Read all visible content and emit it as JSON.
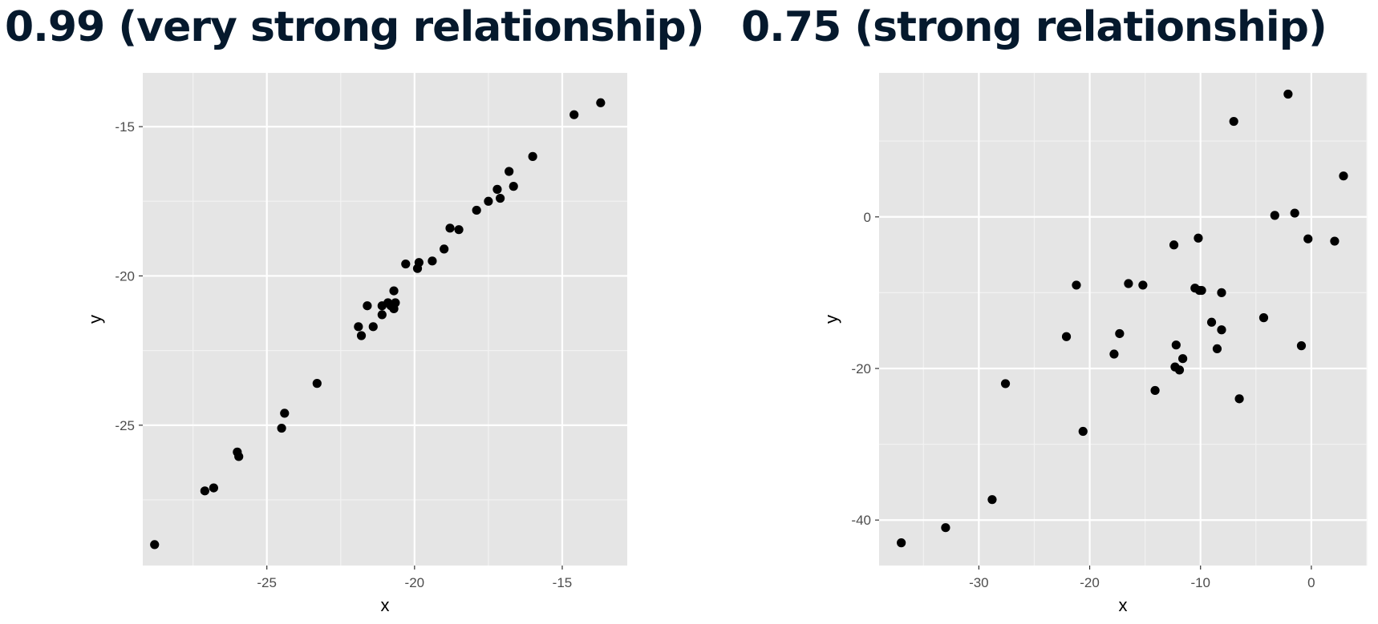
{
  "chart_data": [
    {
      "type": "scatter",
      "title": "0.99 (very strong relationship)",
      "xlabel": "x",
      "ylabel": "y",
      "xlim": [
        -29.2,
        -12.8
      ],
      "ylim": [
        -29.7,
        -13.2
      ],
      "xticks": [
        -25,
        -20,
        -15
      ],
      "yticks": [
        -25,
        -20,
        -15
      ],
      "grid": true,
      "point_color": "#000000",
      "background": "#e5e5e5",
      "x": [
        -28.8,
        -27.1,
        -26.8,
        -26.0,
        -25.95,
        -24.5,
        -24.4,
        -23.3,
        -21.9,
        -21.8,
        -21.6,
        -21.4,
        -21.1,
        -21.1,
        -20.9,
        -20.8,
        -20.7,
        -20.7,
        -20.65,
        -20.3,
        -19.9,
        -19.85,
        -19.4,
        -19.0,
        -18.8,
        -18.5,
        -17.9,
        -17.5,
        -17.2,
        -17.1,
        -16.8,
        -16.65,
        -16.0,
        -14.6,
        -13.7
      ],
      "y": [
        -29.0,
        -27.2,
        -27.1,
        -25.9,
        -26.05,
        -25.1,
        -24.6,
        -23.6,
        -21.7,
        -22.0,
        -21.0,
        -21.7,
        -21.3,
        -21.0,
        -20.9,
        -21.0,
        -21.1,
        -20.5,
        -20.9,
        -19.6,
        -19.75,
        -19.55,
        -19.5,
        -19.1,
        -18.4,
        -18.45,
        -17.8,
        -17.5,
        -17.1,
        -17.4,
        -16.5,
        -17.0,
        -16.0,
        -14.6,
        -14.2
      ]
    },
    {
      "type": "scatter",
      "title": "0.75 (strong relationship)",
      "xlabel": "x",
      "ylabel": "y",
      "xlim": [
        -39.0,
        5.0
      ],
      "ylim": [
        -46.0,
        19.0
      ],
      "xticks": [
        -30,
        -20,
        -10,
        0
      ],
      "yticks": [
        -40,
        -20,
        0
      ],
      "grid": true,
      "point_color": "#000000",
      "background": "#e5e5e5",
      "x": [
        -37.0,
        -33.0,
        -28.8,
        -27.6,
        -22.1,
        -21.2,
        -20.6,
        -17.8,
        -17.3,
        -16.5,
        -15.2,
        -14.1,
        -12.4,
        -12.3,
        -12.2,
        -11.9,
        -11.6,
        -10.5,
        -10.2,
        -10.1,
        -9.9,
        -9.0,
        -8.5,
        -8.1,
        -8.1,
        -7.0,
        -6.5,
        -4.3,
        -3.3,
        -2.1,
        -1.5,
        -0.9,
        -0.3,
        2.1,
        2.9
      ],
      "y": [
        -43.0,
        -41.0,
        -37.3,
        -22.0,
        -15.8,
        -9.0,
        -28.3,
        -18.1,
        -15.4,
        -8.8,
        -9.0,
        -22.9,
        -3.7,
        -19.8,
        -16.9,
        -20.2,
        -18.7,
        -9.4,
        -2.8,
        -9.7,
        -9.7,
        -13.9,
        -17.4,
        -14.9,
        -10.0,
        12.6,
        -24.0,
        -13.3,
        0.2,
        16.2,
        0.5,
        -17.0,
        -2.9,
        -3.2,
        5.4
      ]
    }
  ]
}
